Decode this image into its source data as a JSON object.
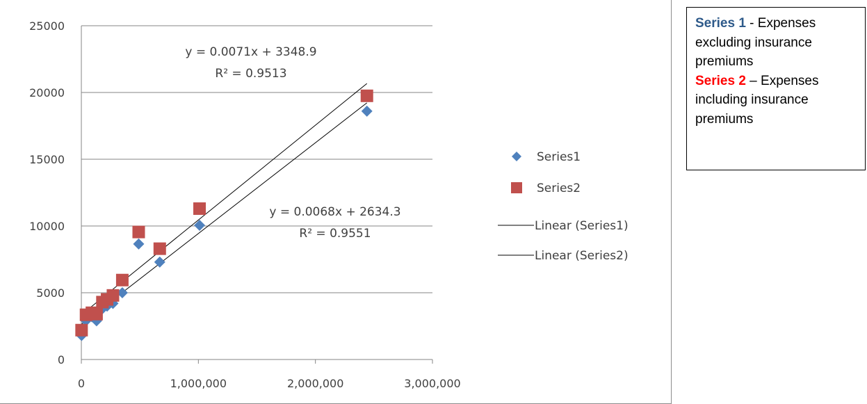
{
  "chart_data": {
    "type": "scatter",
    "x_axis": {
      "range": [
        0,
        3000000
      ],
      "tick_values": [
        0,
        1000000,
        2000000,
        3000000
      ],
      "tick_labels": [
        "0",
        "1,000,000",
        "2,000,000",
        "3,000,000"
      ]
    },
    "y_axis": {
      "range": [
        0,
        25000
      ],
      "tick_values": [
        0,
        5000,
        10000,
        15000,
        20000,
        25000
      ],
      "tick_labels": [
        "0",
        "5000",
        "10000",
        "15000",
        "20000",
        "25000"
      ]
    },
    "grid": "horizontal",
    "legend_position": "right",
    "series": [
      {
        "name": "Series1",
        "marker": "diamond",
        "color": "#4f81bd",
        "points": [
          [
            2000,
            1800
          ],
          [
            40000,
            2900
          ],
          [
            90000,
            3200
          ],
          [
            130000,
            2900
          ],
          [
            180000,
            3800
          ],
          [
            220000,
            4000
          ],
          [
            270000,
            4200
          ],
          [
            350000,
            5000
          ],
          [
            490000,
            8650
          ],
          [
            670000,
            7300
          ],
          [
            1010000,
            10050
          ],
          [
            2440000,
            18600
          ]
        ]
      },
      {
        "name": "Series2",
        "marker": "square",
        "color": "#c0504d",
        "points": [
          [
            2000,
            2200
          ],
          [
            40000,
            3350
          ],
          [
            90000,
            3500
          ],
          [
            130000,
            3400
          ],
          [
            180000,
            4300
          ],
          [
            220000,
            4500
          ],
          [
            270000,
            4800
          ],
          [
            350000,
            5950
          ],
          [
            490000,
            9550
          ],
          [
            670000,
            8300
          ],
          [
            1010000,
            11300
          ],
          [
            2440000,
            19750
          ]
        ]
      }
    ],
    "trendlines": [
      {
        "name": "Linear (Series1)",
        "slope": 0.0068,
        "intercept": 2634.3,
        "x_range": [
          0,
          2440000
        ],
        "equation": "y = 0.0068x + 2634.3",
        "r2": "R² = 0.9551"
      },
      {
        "name": "Linear (Series2)",
        "slope": 0.0071,
        "intercept": 3348.9,
        "x_range": [
          0,
          2440000
        ],
        "equation": "y = 0.0071x + 3348.9",
        "r2": "R² = 0.9513"
      }
    ],
    "line_color": "#000000"
  },
  "note": {
    "line1_label": "Series 1",
    "line1_text": " - Expenses excluding insurance premiums",
    "line2_label": "Series 2",
    "line2_text": " – Expenses including insurance premiums",
    "colors": {
      "series1": "#2e5a8a",
      "series2": "#ff0000"
    }
  }
}
